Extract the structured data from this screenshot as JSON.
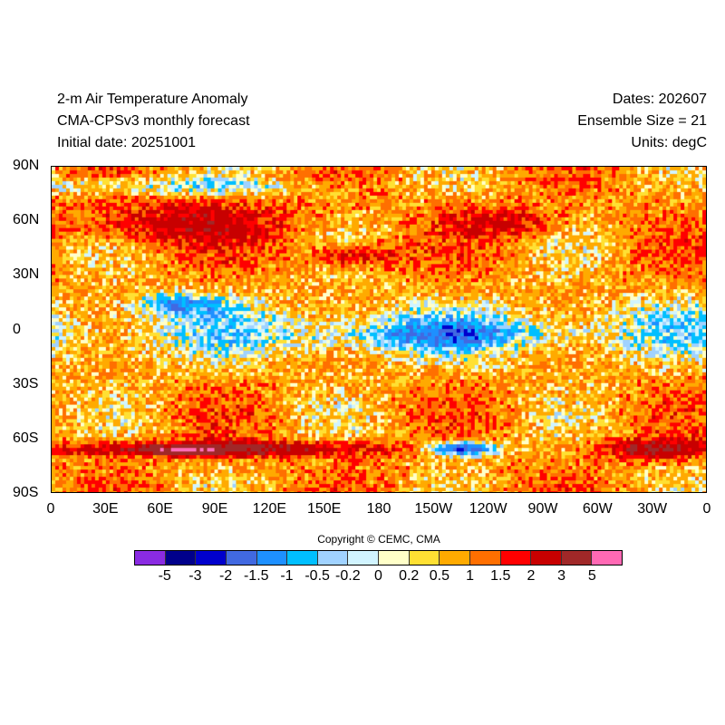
{
  "title": {
    "line1": "2-m Air Temperature Anomaly",
    "line2": "CMA-CPSv3 monthly forecast",
    "line3": "Initial date: 20251001",
    "dates": "Dates: 202607",
    "ensemble": "Ensemble Size = 21",
    "units": "Units: degC"
  },
  "copyright": "Copyright © CEMC, CMA",
  "chart_data": {
    "type": "heatmap",
    "x_ticks": [
      "0",
      "30E",
      "60E",
      "90E",
      "120E",
      "150E",
      "180",
      "150W",
      "120W",
      "90W",
      "60W",
      "30W",
      "0"
    ],
    "y_ticks": [
      "90N",
      "60N",
      "30N",
      "0",
      "30S",
      "60S",
      "90S"
    ],
    "colorbar": {
      "labels": [
        "-5",
        "-3",
        "-2",
        "-1.5",
        "-1",
        "-0.5",
        "-0.2",
        "0",
        "0.2",
        "0.5",
        "1",
        "1.5",
        "2",
        "3",
        "5"
      ],
      "colors": [
        "#8a2be2",
        "#00008b",
        "#0000cd",
        "#4169e1",
        "#1e90ff",
        "#00bfff",
        "#a0d2ff",
        "#d1f4ff",
        "#ffffc8",
        "#ffe033",
        "#ffaa00",
        "#ff6f00",
        "#ff0000",
        "#c80000",
        "#a02828",
        "#ff69b4"
      ]
    }
  }
}
